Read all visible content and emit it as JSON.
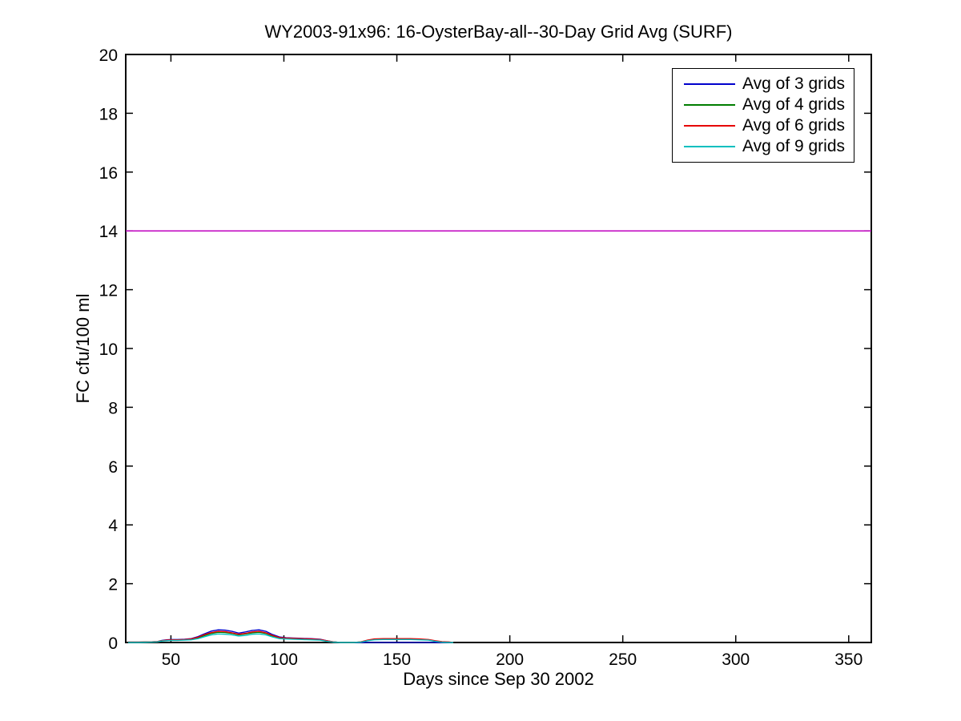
{
  "figure": {
    "title": "WY2003-91x96: 16-OysterBay-all--30-Day Grid Avg (SURF)",
    "background_color": "#ffffff",
    "axis_color": "#000000"
  },
  "chart_data": {
    "type": "line",
    "title": "WY2003-91x96: 16-OysterBay-all--30-Day Grid Avg (SURF)",
    "xlabel": "Days since Sep 30 2002",
    "ylabel": "FC cfu/100 ml",
    "xlim": [
      30,
      360
    ],
    "ylim": [
      0,
      20
    ],
    "x_ticks": [
      50,
      100,
      150,
      200,
      250,
      300,
      350
    ],
    "y_ticks": [
      0,
      2,
      4,
      6,
      8,
      10,
      12,
      14,
      16,
      18,
      20
    ],
    "grid": false,
    "legend_position": "top-right",
    "threshold_line": {
      "y": 14,
      "color": "#bf00bf",
      "name": "threshold-14"
    },
    "x": [
      31,
      36,
      40,
      44,
      46,
      48,
      50,
      53,
      56,
      59,
      62,
      65,
      68,
      71,
      74,
      77,
      80,
      83,
      86,
      89,
      92,
      95,
      98,
      101,
      104,
      108,
      112,
      116,
      119,
      122,
      125,
      128,
      131,
      134,
      137,
      140,
      144,
      148,
      152,
      156,
      160,
      164,
      167,
      170,
      173,
      175
    ],
    "series": [
      {
        "name": "Avg of 3 grids",
        "color": "#0000cc",
        "values": [
          0.01,
          0.01,
          0.02,
          0.03,
          0.07,
          0.09,
          0.1,
          0.1,
          0.11,
          0.13,
          0.2,
          0.3,
          0.39,
          0.43,
          0.42,
          0.38,
          0.32,
          0.36,
          0.41,
          0.43,
          0.38,
          0.27,
          0.19,
          0.16,
          0.15,
          0.14,
          0.13,
          0.11,
          0.06,
          0.02,
          0,
          0,
          0,
          0,
          0,
          0,
          0,
          0,
          0,
          0,
          0,
          0,
          0,
          0,
          0,
          0
        ]
      },
      {
        "name": "Avg of 4 grids",
        "color": "#007d00",
        "values": [
          0.01,
          0.01,
          0.02,
          0.03,
          0.06,
          0.07,
          0.08,
          0.08,
          0.09,
          0.11,
          0.16,
          0.24,
          0.31,
          0.35,
          0.34,
          0.31,
          0.26,
          0.29,
          0.33,
          0.35,
          0.31,
          0.22,
          0.16,
          0.14,
          0.13,
          0.12,
          0.11,
          0.09,
          0.05,
          0.02,
          0,
          0,
          0,
          0.02,
          0.07,
          0.11,
          0.12,
          0.12,
          0.12,
          0.12,
          0.11,
          0.09,
          0.05,
          0.02,
          0.01,
          0
        ]
      },
      {
        "name": "Avg of 6 grids",
        "color": "#e60000",
        "values": [
          0.01,
          0.01,
          0.02,
          0.03,
          0.06,
          0.08,
          0.09,
          0.09,
          0.1,
          0.12,
          0.18,
          0.27,
          0.34,
          0.38,
          0.37,
          0.33,
          0.28,
          0.31,
          0.36,
          0.38,
          0.33,
          0.24,
          0.17,
          0.15,
          0.14,
          0.13,
          0.12,
          0.1,
          0.06,
          0.02,
          0,
          0,
          0,
          0.02,
          0.08,
          0.12,
          0.13,
          0.13,
          0.13,
          0.13,
          0.12,
          0.1,
          0.06,
          0.03,
          0.02,
          0
        ]
      },
      {
        "name": "Avg of 9 grids",
        "color": "#00bfbf",
        "values": [
          0,
          0,
          0.01,
          0.02,
          0.05,
          0.06,
          0.07,
          0.07,
          0.08,
          0.09,
          0.13,
          0.2,
          0.26,
          0.29,
          0.28,
          0.26,
          0.22,
          0.24,
          0.28,
          0.29,
          0.26,
          0.19,
          0.13,
          0.12,
          0.11,
          0.1,
          0.09,
          0.08,
          0.04,
          0.01,
          0,
          0,
          0,
          0.01,
          0.06,
          0.09,
          0.1,
          0.1,
          0.1,
          0.1,
          0.09,
          0.08,
          0.04,
          0.01,
          0,
          0
        ]
      }
    ]
  },
  "legend": {
    "items": [
      {
        "label": "Avg of 3 grids",
        "color": "#0000cc"
      },
      {
        "label": "Avg of 4 grids",
        "color": "#007d00"
      },
      {
        "label": "Avg of 6 grids",
        "color": "#e60000"
      },
      {
        "label": "Avg of 9 grids",
        "color": "#00bfbf"
      }
    ]
  }
}
